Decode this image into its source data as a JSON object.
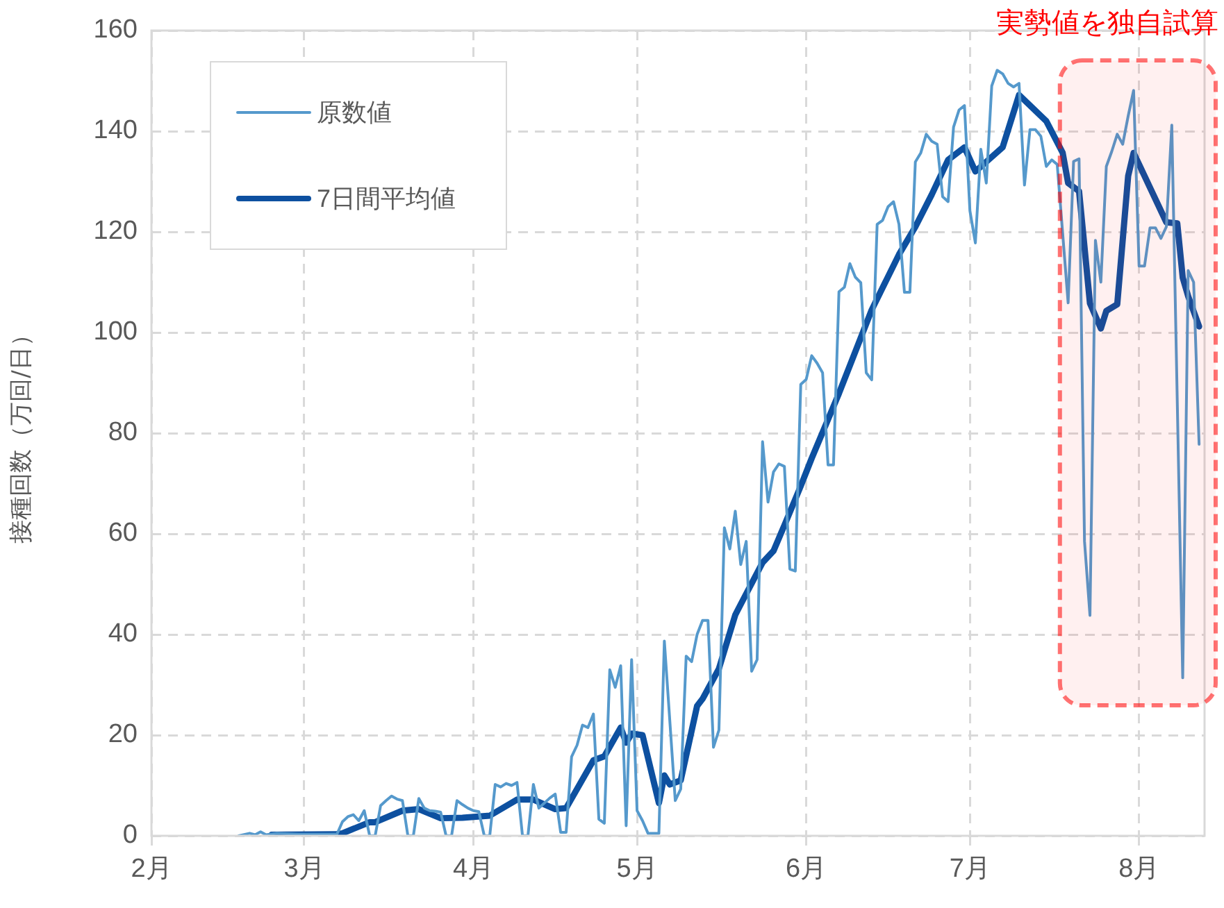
{
  "chart_data": {
    "type": "line",
    "ylabel": "接種回数（万回/日）",
    "xlim": [
      "--02-01",
      "--08-13"
    ],
    "xticks": [
      {
        "value": "--02-01",
        "label": "2月"
      },
      {
        "value": "--03-01",
        "label": "3月"
      },
      {
        "value": "--04-01",
        "label": "4月"
      },
      {
        "value": "--05-01",
        "label": "5月"
      },
      {
        "value": "--06-01",
        "label": "6月"
      },
      {
        "value": "--07-01",
        "label": "7月"
      },
      {
        "value": "--08-01",
        "label": "8月"
      }
    ],
    "ylim": [
      0,
      160
    ],
    "yticks": [
      0,
      20,
      40,
      60,
      80,
      100,
      120,
      140,
      160
    ],
    "grid": true,
    "legend": "top left",
    "marker": "none",
    "line_style": "solid",
    "bands": [
      {
        "axis": "x",
        "from": "--07-18",
        "to": "--08-13",
        "label": "実勢値を独自試算",
        "color": "#ff0000"
      }
    ],
    "series": [
      {
        "name": "原数値",
        "color": "#5599cc",
        "x": [
          "--02-17",
          "--02-19",
          "--02-20",
          "--02-21",
          "--02-22",
          "--02-24",
          "--02-28",
          "--03-04",
          "--03-07",
          "--03-08",
          "--03-09",
          "--03-10",
          "--03-11",
          "--03-12",
          "--03-13",
          "--03-14",
          "--03-15",
          "--03-16",
          "--03-17",
          "--03-18",
          "--03-19",
          "--03-20",
          "--03-21",
          "--03-22",
          "--03-23",
          "--03-24",
          "--03-25",
          "--03-26",
          "--03-27",
          "--03-28",
          "--03-29",
          "--03-30",
          "--03-31",
          "--04-01",
          "--04-02",
          "--04-03",
          "--04-04",
          "--04-05",
          "--04-06",
          "--04-07",
          "--04-08",
          "--04-09",
          "--04-10",
          "--04-11",
          "--04-12",
          "--04-13",
          "--04-14",
          "--04-15",
          "--04-16",
          "--04-17",
          "--04-18",
          "--04-19",
          "--04-20",
          "--04-21",
          "--04-22",
          "--04-23",
          "--04-24",
          "--04-25",
          "--04-26",
          "--04-27",
          "--04-28",
          "--04-29",
          "--04-30",
          "--05-01",
          "--05-02",
          "--05-03",
          "--05-04",
          "--05-05",
          "--05-06",
          "--05-08",
          "--05-09",
          "--05-10",
          "--05-11",
          "--05-12",
          "--05-13",
          "--05-14",
          "--05-15",
          "--05-16",
          "--05-17",
          "--05-18",
          "--05-19",
          "--05-20",
          "--05-21",
          "--05-22",
          "--05-23",
          "--05-24",
          "--05-25",
          "--05-26",
          "--05-27",
          "--05-28",
          "--05-29",
          "--05-30",
          "--05-31",
          "--06-01",
          "--06-02",
          "--06-03",
          "--06-04",
          "--06-05",
          "--06-06",
          "--06-07",
          "--06-08",
          "--06-09",
          "--06-10",
          "--06-11",
          "--06-12",
          "--06-13",
          "--06-14",
          "--06-15",
          "--06-16",
          "--06-17",
          "--06-18",
          "--06-19",
          "--06-20",
          "--06-21",
          "--06-22",
          "--06-23",
          "--06-24",
          "--06-25",
          "--06-26",
          "--06-27",
          "--06-28",
          "--06-29",
          "--06-30",
          "--07-01",
          "--07-02",
          "--07-03",
          "--07-04",
          "--07-05",
          "--07-06",
          "--07-07",
          "--07-08",
          "--07-09",
          "--07-10",
          "--07-11",
          "--07-12",
          "--07-13",
          "--07-14",
          "--07-15",
          "--07-16",
          "--07-17",
          "--07-19",
          "--07-20",
          "--07-21",
          "--07-22",
          "--07-23",
          "--07-24",
          "--07-25",
          "--07-26",
          "--07-27",
          "--07-28",
          "--07-29",
          "--07-30",
          "--07-31",
          "--08-01",
          "--08-02",
          "--08-03",
          "--08-04",
          "--08-05",
          "--08-06",
          "--08-07",
          "--08-09",
          "--08-10",
          "--08-11",
          "--08-12"
        ],
        "values": [
          0,
          0.5,
          0.2,
          0.8,
          0.2,
          0.5,
          0.3,
          0.3,
          0.3,
          2.8,
          3.8,
          4.2,
          3,
          5,
          0,
          0,
          6,
          7,
          7.9,
          7.3,
          7,
          0,
          0,
          7.4,
          5.5,
          5,
          4.9,
          4.7,
          0,
          0,
          7,
          6.2,
          5.5,
          5,
          4.8,
          0,
          0,
          10.2,
          9.7,
          10.4,
          10,
          10.6,
          0,
          0,
          10.2,
          5.5,
          6.5,
          7.5,
          8.3,
          0.7,
          0.7,
          15.7,
          18,
          22,
          21.5,
          24.2,
          3.3,
          2.5,
          33,
          29.5,
          33.8,
          2,
          35,
          5,
          3,
          0.5,
          0.5,
          0.5,
          38.7,
          7,
          9.3,
          35.7,
          34.6,
          40,
          42.8,
          42.8,
          17.6,
          21,
          61.2,
          57,
          64.5,
          53.9,
          58.5,
          32.7,
          35,
          78.3,
          66.3,
          72.3,
          73.9,
          73.4,
          53,
          52.6,
          89.7,
          90.7,
          95.4,
          93.9,
          92,
          73.7,
          73.7,
          108.1,
          109,
          113.7,
          111,
          109.9,
          92,
          90.6,
          121.5,
          122.3,
          125,
          126,
          121.5,
          108,
          108,
          133.9,
          135.7,
          139.4,
          138,
          137.4,
          127,
          126,
          140.8,
          144.2,
          145.1,
          124.2,
          117.8,
          136.4,
          129.7,
          149,
          152.1,
          151.4,
          149.5,
          148.8,
          149.5,
          129.3,
          140.3,
          140.3,
          139,
          133,
          134.3,
          133.4,
          105.9,
          134,
          134.5,
          58.5,
          43.8,
          118.3,
          110,
          133,
          136,
          139.4,
          137.4,
          143,
          148.1,
          113.2,
          113.2,
          120.8,
          120.8,
          118.7,
          121,
          141.2,
          31.4,
          112.3,
          110,
          77.8
        ]
      },
      {
        "name": "7日間平均値",
        "color": "#0d50a0",
        "x": [
          "--02-23",
          "--03-07",
          "--03-08",
          "--03-13",
          "--03-14",
          "--03-19",
          "--03-22",
          "--03-26",
          "--03-30",
          "--04-04",
          "--04-09",
          "--04-12",
          "--04-16",
          "--04-18",
          "--04-23",
          "--04-25",
          "--04-28",
          "--04-29",
          "--04-30",
          "--05-02",
          "--05-05",
          "--05-06",
          "--05-07",
          "--05-09",
          "--05-12",
          "--05-13",
          "--05-16",
          "--05-19",
          "--05-20",
          "--05-24",
          "--05-26",
          "--05-28",
          "--05-31",
          "--06-02",
          "--06-07",
          "--06-13",
          "--06-18",
          "--06-21",
          "--06-24",
          "--06-27",
          "--06-30",
          "--07-02",
          "--07-07",
          "--07-10",
          "--07-15",
          "--07-18",
          "--07-19",
          "--07-21",
          "--07-23",
          "--07-25",
          "--07-26",
          "--07-28",
          "--07-30",
          "--07-31",
          "--08-06",
          "--08-08",
          "--08-09",
          "--08-10",
          "--08-12"
        ],
        "values": [
          0.2,
          0.3,
          0.5,
          2.7,
          2.7,
          5,
          5.3,
          3.5,
          3.6,
          4,
          7.2,
          7.2,
          5.3,
          5.5,
          15,
          15.8,
          21.5,
          18.5,
          20.3,
          20,
          6.5,
          12,
          10.2,
          11,
          25.8,
          27.2,
          33.2,
          43.9,
          46,
          54.3,
          56.6,
          61.7,
          69.5,
          75,
          87.9,
          104.5,
          115.5,
          121,
          127.4,
          134.3,
          136.8,
          132,
          136.8,
          147.2,
          142,
          135.7,
          129.7,
          128.1,
          105.8,
          100.8,
          104.3,
          105.6,
          131.1,
          135.7,
          121.9,
          121.7,
          110.9,
          107.2,
          101.2
        ]
      }
    ]
  }
}
